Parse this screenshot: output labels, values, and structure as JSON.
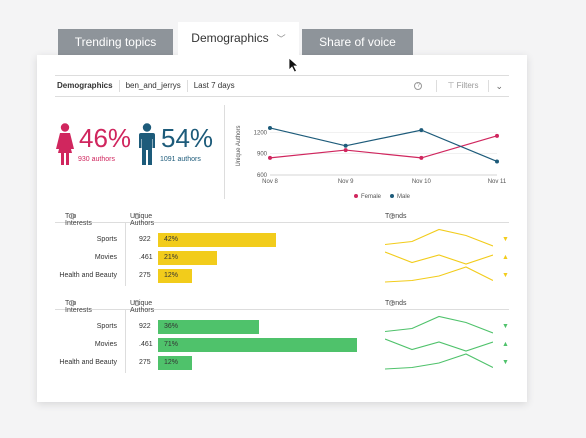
{
  "tabs": [
    {
      "label": "Trending topics"
    },
    {
      "label": "Demographics"
    },
    {
      "label": "Share of voice"
    }
  ],
  "toolbar": {
    "title": "Demographics",
    "account": "ben_and_jerrys",
    "range": "Last 7 days",
    "filters": "Filters"
  },
  "gender": {
    "female": {
      "pct": "46%",
      "authors": "930 authors",
      "color": "#d0265e"
    },
    "male": {
      "pct": "54%",
      "authors": "1091 authors",
      "color": "#1d5b7a"
    }
  },
  "chart_data": {
    "type": "line",
    "x": [
      "Nov 8",
      "Nov 9",
      "Nov 10",
      "Nov 11"
    ],
    "ylabel": "Unique Authors",
    "yticks": [
      600,
      900,
      1200
    ],
    "ylim": [
      600,
      1400
    ],
    "series": [
      {
        "name": "Female",
        "color": "#d0265e",
        "values": [
          840,
          950,
          840,
          1150
        ]
      },
      {
        "name": "Male",
        "color": "#1d5b7a",
        "values": [
          1260,
          1010,
          1230,
          790
        ]
      }
    ],
    "legend": "bottom"
  },
  "sections": [
    {
      "headers": {
        "interests": "Top Interests",
        "authors": "Unique Authors",
        "trends": "Trends"
      },
      "color": "#f2cc1b",
      "rows": [
        {
          "label": "Sports",
          "count": "922",
          "pct_label": "42%",
          "pct": 0.42,
          "trend": [
            3,
            5,
            13,
            9,
            2
          ],
          "arrow": "▼"
        },
        {
          "label": "Movies",
          "count": ".461",
          "pct_label": "21%",
          "pct": 0.21,
          "trend": [
            10,
            3,
            8,
            2,
            8
          ],
          "arrow": "▲"
        },
        {
          "label": "Health and Beauty",
          "count": "275",
          "pct_label": "12%",
          "pct": 0.12,
          "trend": [
            2,
            3,
            6,
            12,
            3
          ],
          "arrow": "▼"
        }
      ]
    },
    {
      "headers": {
        "interests": "Top Interests",
        "authors": "Unique Authors",
        "trends": "Trends"
      },
      "color": "#4fc26b",
      "rows": [
        {
          "label": "Sports",
          "count": "922",
          "pct_label": "36%",
          "pct": 0.36,
          "trend": [
            3,
            5,
            13,
            9,
            2
          ],
          "arrow": "▼"
        },
        {
          "label": "Movies",
          "count": ".461",
          "pct_label": "71%",
          "pct": 0.71,
          "trend": [
            10,
            3,
            8,
            2,
            8
          ],
          "arrow": "▲"
        },
        {
          "label": "Health and Beauty",
          "count": "275",
          "pct_label": "12%",
          "pct": 0.12,
          "trend": [
            2,
            3,
            6,
            12,
            3
          ],
          "arrow": "▼"
        }
      ]
    }
  ]
}
